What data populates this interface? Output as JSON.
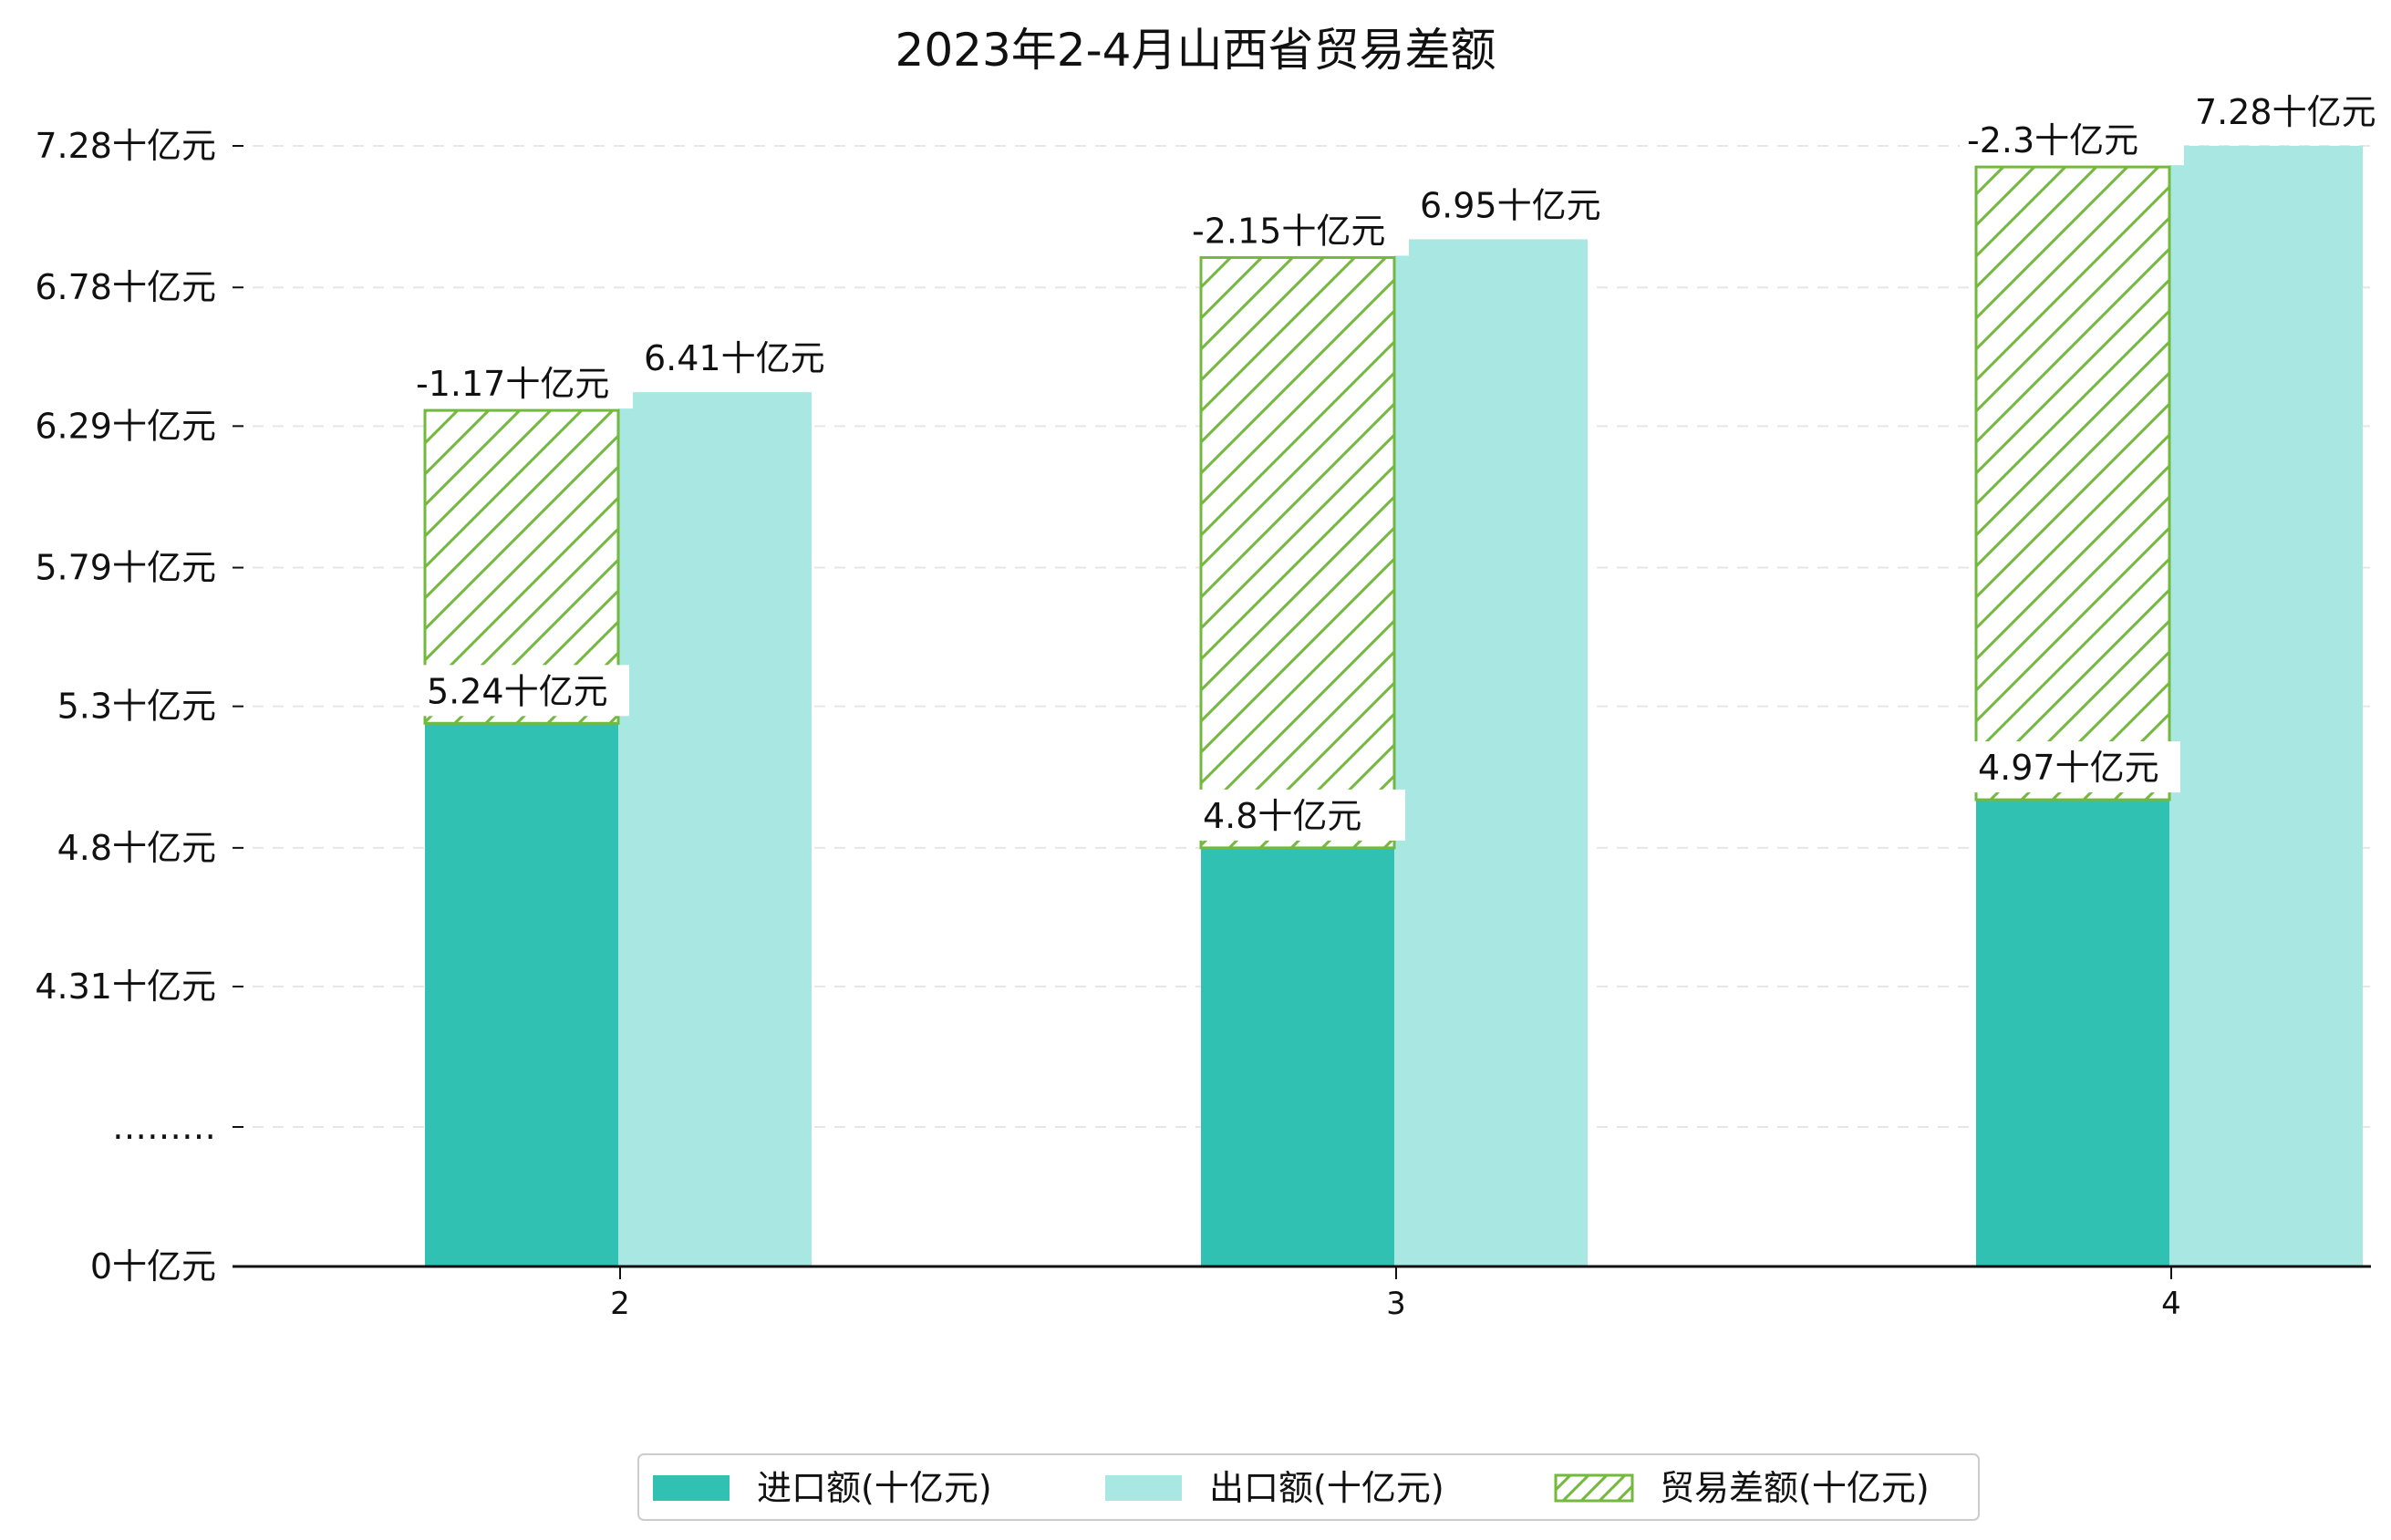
{
  "chart_data": {
    "type": "bar",
    "title": "2023年2-4月山西省贸易差额",
    "categories": [
      "2",
      "3",
      "4"
    ],
    "series": [
      {
        "name": "进口额(十亿元)",
        "values": [
          5.24,
          4.8,
          4.97
        ],
        "labels": [
          "5.24十亿元",
          "4.8十亿元",
          "4.97十亿元"
        ],
        "color": "#31c1b3"
      },
      {
        "name": "出口额(十亿元)",
        "values": [
          6.41,
          6.95,
          7.28
        ],
        "labels": [
          "6.41十亿元",
          "6.95十亿元",
          "7.28十亿元"
        ],
        "color": "#a9e8e2"
      },
      {
        "name": "贸易差额(十亿元)",
        "values": [
          -1.17,
          -2.15,
          -2.3
        ],
        "labels": [
          "-1.17十亿元",
          "-2.15十亿元",
          "-2.3十亿元"
        ],
        "color": "#72b93e",
        "pattern": "hatch"
      }
    ],
    "y_ticks": [
      "0十亿元",
      "………",
      "4.31十亿元",
      "4.8十亿元",
      "5.3十亿元",
      "5.79十亿元",
      "6.29十亿元",
      "6.78十亿元",
      "7.28十亿元"
    ],
    "y_tick_values": [
      0,
      null,
      4.31,
      4.8,
      5.3,
      5.79,
      6.29,
      6.78,
      7.28
    ],
    "axis_break": true,
    "grid": "horizontal-dashed",
    "legend": "bottom-center"
  }
}
